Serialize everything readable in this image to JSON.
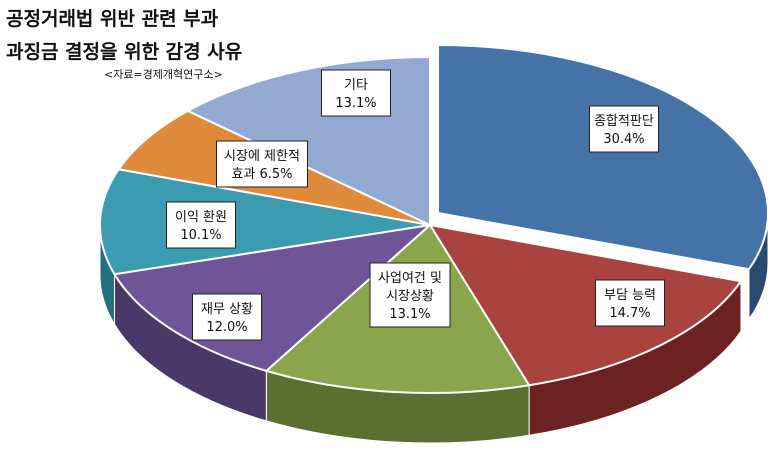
{
  "title_line1": "공정거래법 위반 관련 부과",
  "title_line2": "과징금  결정을 위한 감경 사유",
  "source": "<자료=경제개혁연구소>",
  "chart_data": {
    "type": "pie",
    "style": "3d-exploded",
    "categories": [
      "종합적판단",
      "부담 능력",
      "사업여건 및 시장상황",
      "재무 상황",
      "이익 환원",
      "시장에 제한적 효과",
      "기타"
    ],
    "values": [
      30.4,
      14.7,
      13.1,
      12.0,
      10.1,
      6.5,
      13.1
    ],
    "slices": [
      {
        "label_lines": [
          "종합적판단",
          "30.4%"
        ],
        "value": 30.4,
        "color": "#4572a7",
        "side": "#2b4a70"
      },
      {
        "label_lines": [
          "부담 능력",
          "14.7%"
        ],
        "value": 14.7,
        "color": "#a84340",
        "side": "#6b2220"
      },
      {
        "label_lines": [
          "사업여건 및",
          "시장상황",
          "13.1%"
        ],
        "value": 13.1,
        "color": "#8aa64c",
        "side": "#5a7030"
      },
      {
        "label_lines": [
          "재무 상황",
          "12.0%"
        ],
        "value": 12.0,
        "color": "#6f5597",
        "side": "#4a3868"
      },
      {
        "label_lines": [
          "이익 환원",
          "10.1%"
        ],
        "value": 10.1,
        "color": "#3b9bb0",
        "side": "#236f80"
      },
      {
        "label_lines": [
          "시장에 제한적",
          "효과 6.5%"
        ],
        "value": 6.5,
        "color": "#e08a3c",
        "side": "#a45e1f"
      },
      {
        "label_lines": [
          "기타",
          "13.1%"
        ],
        "value": 13.1,
        "color": "#93a9d1",
        "side": "#6d83ad"
      }
    ],
    "legend": "none",
    "grid": false
  }
}
